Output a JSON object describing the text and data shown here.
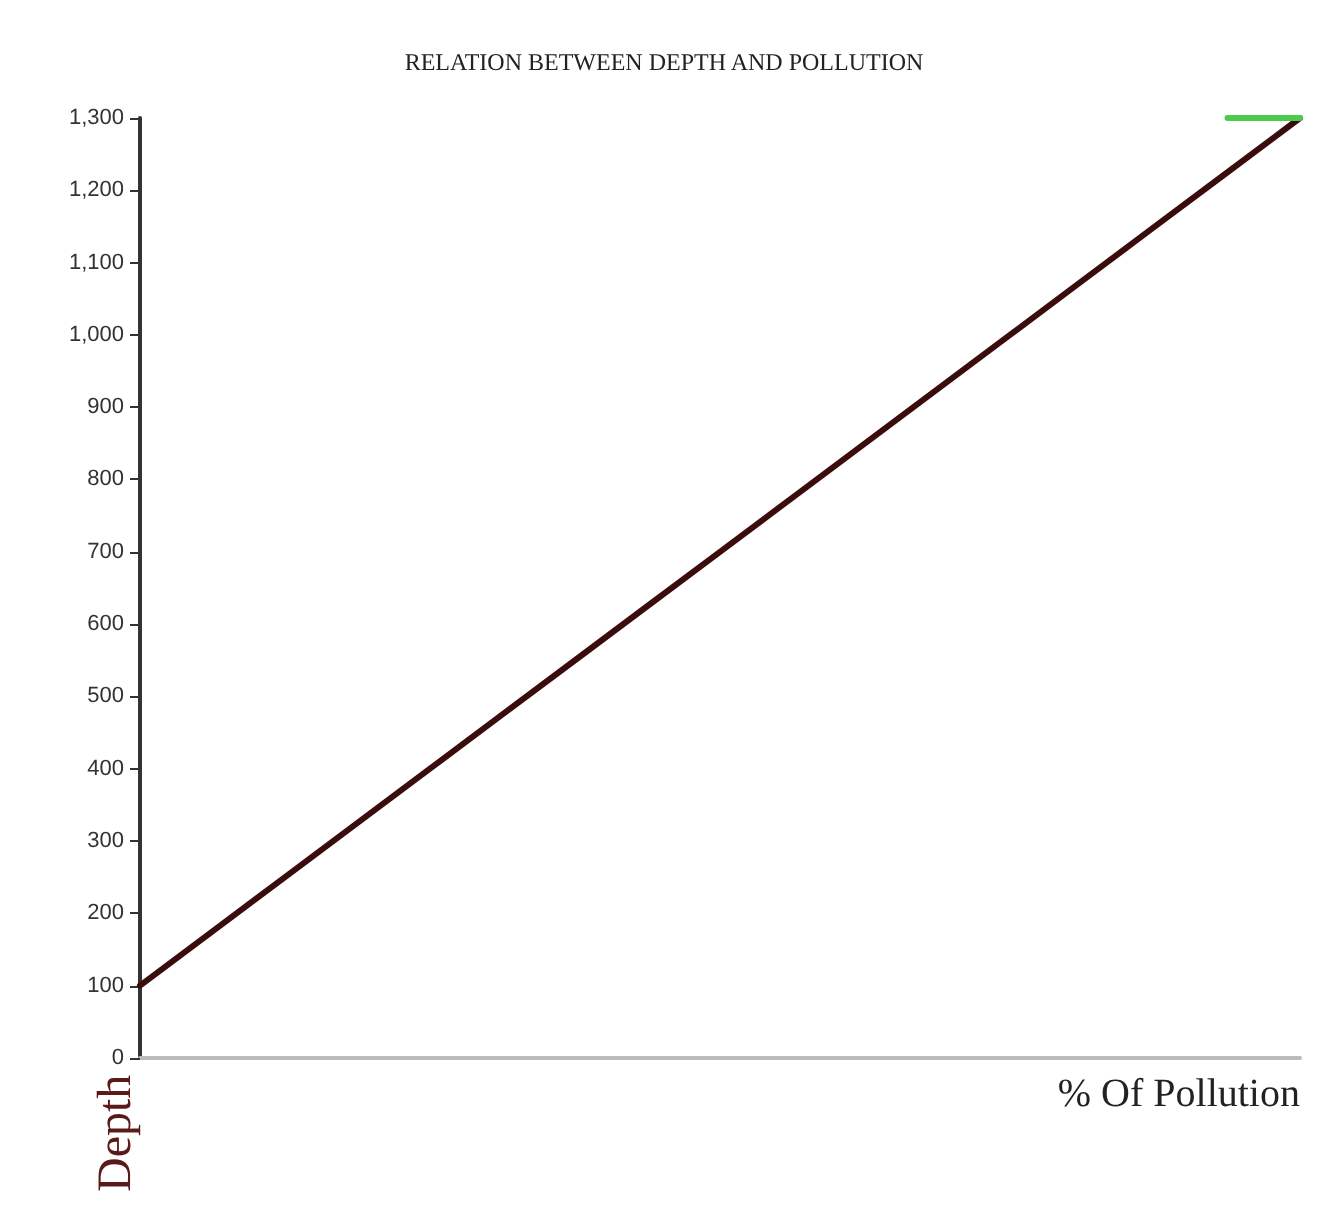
{
  "chart_data": {
    "type": "line",
    "title": "RELATION BETWEEN DEPTH AND POLLUTION",
    "xlabel": "% Of Pollution",
    "ylabel": "Depth",
    "categories": [
      null,
      null,
      null,
      null,
      null,
      null,
      null,
      null,
      null,
      null,
      null,
      null,
      null,
      null,
      null,
      null,
      null
    ],
    "series": [
      {
        "color": "#3a0c0c",
        "values": [
          100,
          175,
          250,
          325,
          400,
          475,
          550,
          625,
          700,
          775,
          850,
          925,
          1000,
          1075,
          1150,
          1225,
          1300
        ]
      },
      {
        "color": "#4ccb4c",
        "values": [
          null,
          null,
          null,
          null,
          null,
          null,
          null,
          null,
          null,
          null,
          null,
          null,
          null,
          null,
          null,
          1300,
          1300
        ]
      }
    ],
    "ylim": [
      0,
      1300
    ],
    "yticks": [
      0,
      100,
      200,
      300,
      400,
      500,
      600,
      700,
      800,
      900,
      {
        "value": 1000,
        "label": "1,000"
      },
      {
        "value": 1100,
        "label": "1,100"
      },
      {
        "value": 1200,
        "label": "1,200"
      },
      {
        "value": 1300,
        "label": "1,300"
      }
    ],
    "tick_labels": "y",
    "grid": false,
    "marker": "none",
    "line_style": "solid"
  }
}
